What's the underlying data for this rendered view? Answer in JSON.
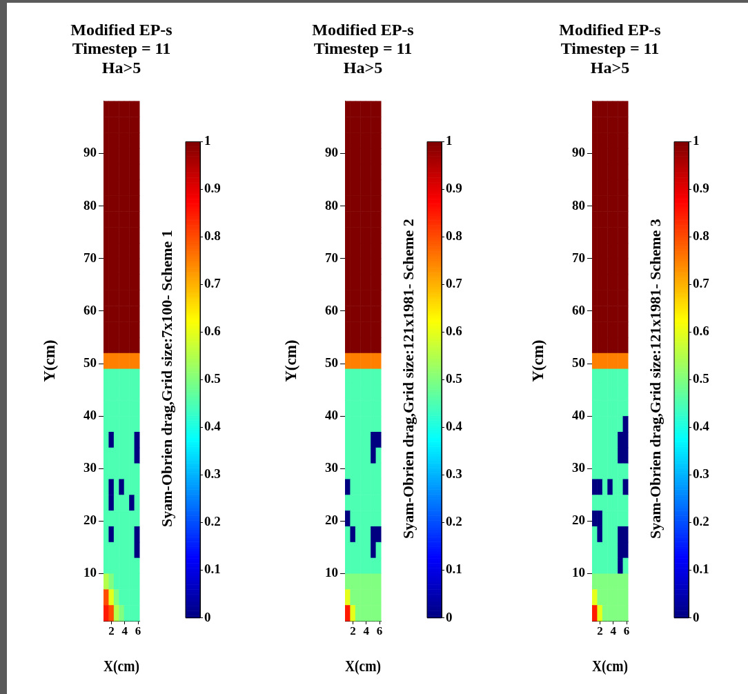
{
  "chart_data": [
    {
      "type": "heatmap",
      "title": "Modified EP-s\nTimestep = 11\nHa>5",
      "xlabel": "X(cm)",
      "ylabel": "Y(cm)",
      "clabel": "Syam-Obrien drag,Grid size:7x100- Scheme 1",
      "xlim": [
        0.8,
        6.2
      ],
      "xticks": [
        2,
        4,
        6
      ],
      "ylim": [
        1,
        100
      ],
      "yticks": [
        10,
        20,
        30,
        40,
        50,
        60,
        70,
        80,
        90
      ],
      "clim": [
        0,
        1
      ],
      "cticks": [
        0,
        0.1,
        0.2,
        0.3,
        0.4,
        0.5,
        0.6,
        0.7,
        0.8,
        0.9,
        1
      ],
      "cells": [
        [
          1,
          1,
          1,
          1,
          1,
          1,
          1
        ],
        [
          1,
          1,
          1,
          1,
          1,
          1,
          1
        ],
        [
          1,
          1,
          1,
          1,
          1,
          1,
          1
        ],
        [
          1,
          1,
          1,
          1,
          1,
          1,
          1
        ],
        [
          1,
          1,
          1,
          1,
          1,
          1,
          1
        ],
        [
          1,
          1,
          1,
          1,
          1,
          1,
          1
        ],
        [
          1,
          1,
          1,
          1,
          1,
          1,
          1
        ],
        [
          1,
          1,
          1,
          1,
          1,
          1,
          1
        ],
        [
          1,
          1,
          1,
          1,
          1,
          1,
          1
        ],
        [
          1,
          1,
          1,
          1,
          1,
          1,
          1
        ],
        [
          1,
          1,
          1,
          1,
          1,
          1,
          1
        ],
        [
          1,
          1,
          1,
          1,
          1,
          1,
          1
        ],
        [
          1,
          1,
          1,
          1,
          1,
          1,
          1
        ],
        [
          1,
          1,
          1,
          1,
          1,
          1,
          1
        ],
        [
          1,
          1,
          1,
          1,
          1,
          1,
          1
        ],
        [
          1,
          1,
          1,
          1,
          1,
          1,
          1
        ],
        [
          0.75,
          0.75,
          0.75,
          0.75,
          0.75,
          0.75,
          0.75
        ],
        [
          0.45,
          0.45,
          0.45,
          0.45,
          0.45,
          0.45,
          0.45
        ],
        [
          0.45,
          0.45,
          0.45,
          0.45,
          0.45,
          0.45,
          0.45
        ],
        [
          0.45,
          0.45,
          0.45,
          0.45,
          0.45,
          0.45,
          0.45
        ],
        [
          0.45,
          0.45,
          0.45,
          0.45,
          0.45,
          0.45,
          0.45
        ],
        [
          0.45,
          0,
          0.45,
          0.45,
          0.45,
          0.45,
          0
        ],
        [
          0.45,
          0.45,
          0.45,
          0.45,
          0.45,
          0.45,
          0
        ],
        [
          0.45,
          0.45,
          0.45,
          0.45,
          0.45,
          0.45,
          0.45
        ],
        [
          0.45,
          0,
          0.45,
          0,
          0.45,
          0.45,
          0.45
        ],
        [
          0.45,
          0,
          0.45,
          0.45,
          0.45,
          0,
          0.45
        ],
        [
          0.45,
          0.45,
          0.45,
          0.45,
          0.45,
          0.45,
          0.45
        ],
        [
          0.45,
          0,
          0.45,
          0.45,
          0.45,
          0.45,
          0
        ],
        [
          0.45,
          0.45,
          0.45,
          0.45,
          0.45,
          0.45,
          0
        ],
        [
          0.45,
          0.45,
          0.45,
          0.45,
          0.45,
          0.45,
          0.45
        ],
        [
          0.55,
          0.5,
          0.45,
          0.45,
          0.45,
          0.45,
          0.45
        ],
        [
          0.8,
          0.6,
          0.5,
          0.45,
          0.45,
          0.45,
          0.45
        ],
        [
          0.85,
          0.8,
          0.55,
          0.5,
          0.45,
          0.45,
          0.45
        ]
      ]
    },
    {
      "type": "heatmap",
      "title": "Modified EP-s\nTimestep = 11\nHa>5",
      "xlabel": "X(cm)",
      "ylabel": "Y(cm)",
      "clabel": "Syam-Obrien drag,Grid size:121x1981- Scheme 2",
      "xlim": [
        0.8,
        6.2
      ],
      "xticks": [
        2,
        4,
        6
      ],
      "ylim": [
        1,
        100
      ],
      "yticks": [
        10,
        20,
        30,
        40,
        50,
        60,
        70,
        80,
        90
      ],
      "clim": [
        0,
        1
      ],
      "cticks": [
        0,
        0.1,
        0.2,
        0.3,
        0.4,
        0.5,
        0.6,
        0.7,
        0.8,
        0.9,
        1
      ],
      "cells": [
        [
          1,
          1,
          1,
          1,
          1,
          1,
          1
        ],
        [
          1,
          1,
          1,
          1,
          1,
          1,
          1
        ],
        [
          1,
          1,
          1,
          1,
          1,
          1,
          1
        ],
        [
          1,
          1,
          1,
          1,
          1,
          1,
          1
        ],
        [
          1,
          1,
          1,
          1,
          1,
          1,
          1
        ],
        [
          1,
          1,
          1,
          1,
          1,
          1,
          1
        ],
        [
          1,
          1,
          1,
          1,
          1,
          1,
          1
        ],
        [
          1,
          1,
          1,
          1,
          1,
          1,
          1
        ],
        [
          1,
          1,
          1,
          1,
          1,
          1,
          1
        ],
        [
          1,
          1,
          1,
          1,
          1,
          1,
          1
        ],
        [
          1,
          1,
          1,
          1,
          1,
          1,
          1
        ],
        [
          1,
          1,
          1,
          1,
          1,
          1,
          1
        ],
        [
          1,
          1,
          1,
          1,
          1,
          1,
          1
        ],
        [
          1,
          1,
          1,
          1,
          1,
          1,
          1
        ],
        [
          1,
          1,
          1,
          1,
          1,
          1,
          1
        ],
        [
          1,
          1,
          1,
          1,
          1,
          1,
          1
        ],
        [
          0.75,
          0.75,
          0.75,
          0.75,
          0.75,
          0.75,
          0.75
        ],
        [
          0.45,
          0.45,
          0.45,
          0.45,
          0.45,
          0.45,
          0.45
        ],
        [
          0.45,
          0.45,
          0.45,
          0.45,
          0.45,
          0.45,
          0.45
        ],
        [
          0.45,
          0.45,
          0.45,
          0.45,
          0.45,
          0.45,
          0.45
        ],
        [
          0.45,
          0.45,
          0.45,
          0.45,
          0.45,
          0.45,
          0.45
        ],
        [
          0.45,
          0.45,
          0.45,
          0.45,
          0.45,
          0,
          0
        ],
        [
          0.45,
          0.45,
          0.45,
          0.45,
          0.45,
          0,
          0.45
        ],
        [
          0.45,
          0.45,
          0.45,
          0.45,
          0.45,
          0.45,
          0.45
        ],
        [
          0,
          0.45,
          0.45,
          0.45,
          0.45,
          0.45,
          0.45
        ],
        [
          0.45,
          0.45,
          0.45,
          0.45,
          0.45,
          0.45,
          0.45
        ],
        [
          0,
          0.45,
          0.45,
          0.45,
          0.45,
          0.45,
          0.45
        ],
        [
          0.45,
          0,
          0.45,
          0.45,
          0.45,
          0,
          0
        ],
        [
          0.45,
          0.45,
          0.45,
          0.45,
          0.45,
          0,
          0.45
        ],
        [
          0.45,
          0.45,
          0.45,
          0.45,
          0.45,
          0.45,
          0.45
        ],
        [
          0.5,
          0.5,
          0.5,
          0.5,
          0.5,
          0.5,
          0.5
        ],
        [
          0.6,
          0.5,
          0.5,
          0.5,
          0.5,
          0.5,
          0.5
        ],
        [
          0.85,
          0.6,
          0.5,
          0.5,
          0.5,
          0.5,
          0.5
        ]
      ]
    },
    {
      "type": "heatmap",
      "title": "Modified EP-s\nTimestep = 11\nHa>5",
      "xlabel": "X(cm)",
      "ylabel": "Y(cm)",
      "clabel": "Syam-Obrien drag,Grid size:121x1981- Scheme 3",
      "xlim": [
        0.8,
        6.2
      ],
      "xticks": [
        2,
        4,
        6
      ],
      "ylim": [
        1,
        100
      ],
      "yticks": [
        10,
        20,
        30,
        40,
        50,
        60,
        70,
        80,
        90
      ],
      "clim": [
        0,
        1
      ],
      "cticks": [
        0,
        0.1,
        0.2,
        0.3,
        0.4,
        0.5,
        0.6,
        0.7,
        0.8,
        0.9,
        1
      ],
      "cells": [
        [
          1,
          1,
          1,
          1,
          1,
          1,
          1
        ],
        [
          1,
          1,
          1,
          1,
          1,
          1,
          1
        ],
        [
          1,
          1,
          1,
          1,
          1,
          1,
          1
        ],
        [
          1,
          1,
          1,
          1,
          1,
          1,
          1
        ],
        [
          1,
          1,
          1,
          1,
          1,
          1,
          1
        ],
        [
          1,
          1,
          1,
          1,
          1,
          1,
          1
        ],
        [
          1,
          1,
          1,
          1,
          1,
          1,
          1
        ],
        [
          1,
          1,
          1,
          1,
          1,
          1,
          1
        ],
        [
          1,
          1,
          1,
          1,
          1,
          1,
          1
        ],
        [
          1,
          1,
          1,
          1,
          1,
          1,
          1
        ],
        [
          1,
          1,
          1,
          1,
          1,
          1,
          1
        ],
        [
          1,
          1,
          1,
          1,
          1,
          1,
          1
        ],
        [
          1,
          1,
          1,
          1,
          1,
          1,
          1
        ],
        [
          1,
          1,
          1,
          1,
          1,
          1,
          1
        ],
        [
          1,
          1,
          1,
          1,
          1,
          1,
          1
        ],
        [
          1,
          1,
          1,
          1,
          1,
          1,
          1
        ],
        [
          0.75,
          0.75,
          0.75,
          0.75,
          0.75,
          0.75,
          0.75
        ],
        [
          0.45,
          0.45,
          0.45,
          0.45,
          0.45,
          0.45,
          0.45
        ],
        [
          0.45,
          0.45,
          0.45,
          0.45,
          0.45,
          0.45,
          0.45
        ],
        [
          0.45,
          0.45,
          0.45,
          0.45,
          0.45,
          0.45,
          0.45
        ],
        [
          0.45,
          0.45,
          0.45,
          0.45,
          0.45,
          0.45,
          0
        ],
        [
          0.45,
          0.45,
          0.45,
          0.45,
          0.45,
          0,
          0
        ],
        [
          0.45,
          0.45,
          0.45,
          0.45,
          0.45,
          0,
          0
        ],
        [
          0.45,
          0.45,
          0.45,
          0.45,
          0.45,
          0.45,
          0.45
        ],
        [
          0,
          0,
          0.45,
          0,
          0.45,
          0.45,
          0
        ],
        [
          0.45,
          0.45,
          0.45,
          0.45,
          0.45,
          0.45,
          0.45
        ],
        [
          0,
          0,
          0.45,
          0.45,
          0.45,
          0.45,
          0.45
        ],
        [
          0.45,
          0,
          0.45,
          0.45,
          0.45,
          0,
          0
        ],
        [
          0.45,
          0.45,
          0.45,
          0.45,
          0.45,
          0,
          0
        ],
        [
          0.45,
          0.45,
          0.45,
          0.45,
          0.45,
          0,
          0.45
        ],
        [
          0.5,
          0.5,
          0.5,
          0.5,
          0.5,
          0.5,
          0.5
        ],
        [
          0.6,
          0.5,
          0.5,
          0.5,
          0.5,
          0.5,
          0.5
        ],
        [
          0.85,
          0.6,
          0.5,
          0.5,
          0.5,
          0.5,
          0.5
        ]
      ]
    }
  ]
}
